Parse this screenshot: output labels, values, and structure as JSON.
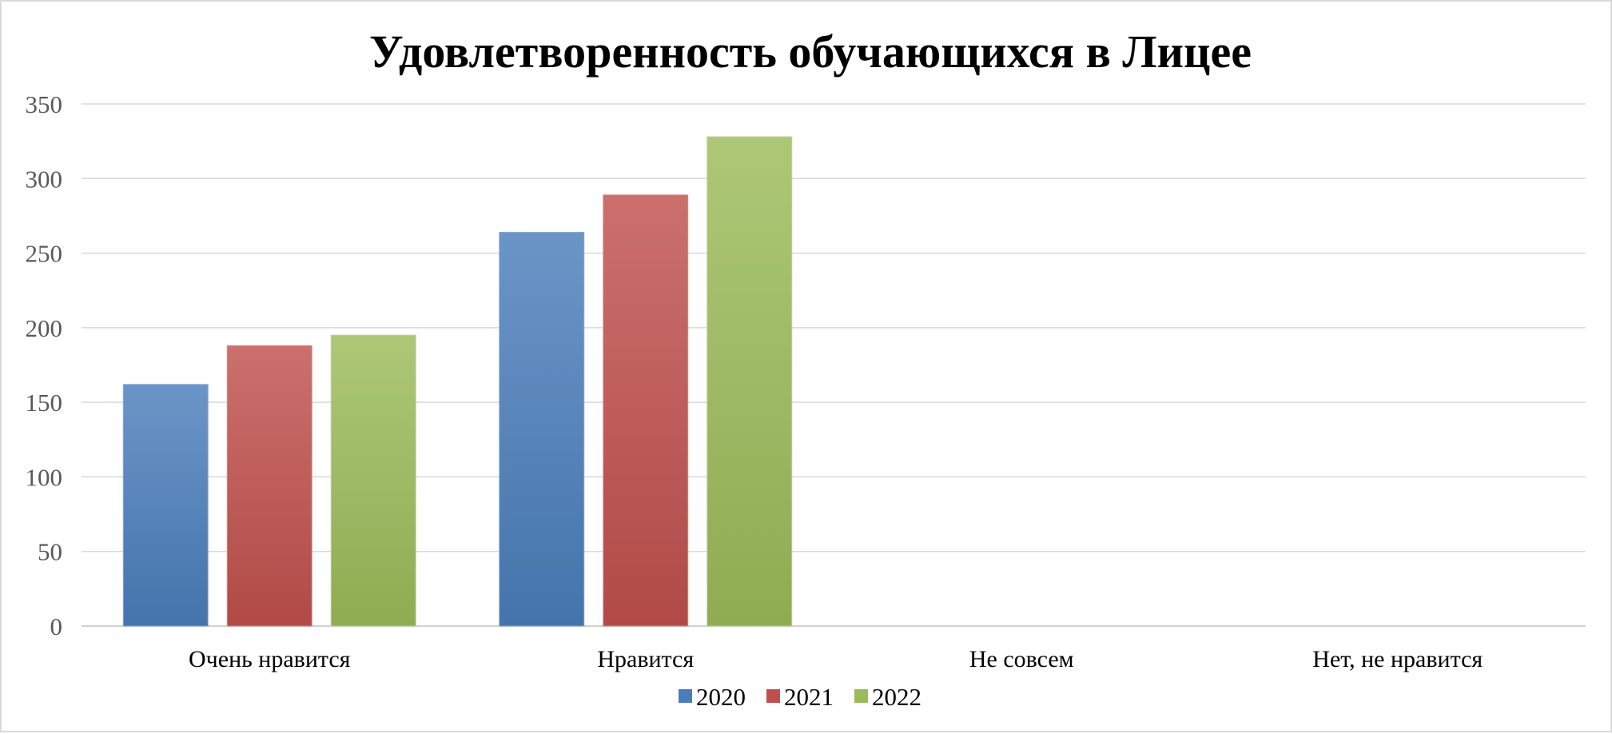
{
  "chart_data": {
    "type": "bar",
    "title": "Удовлетворенность обучающихся в Лицее",
    "categories": [
      "Очень нравится",
      "Нравится",
      "Не совсем",
      "Нет, не нравится"
    ],
    "series": [
      {
        "name": "2020",
        "values": [
          162,
          264,
          0,
          0
        ],
        "color": "#4a7ebb"
      },
      {
        "name": "2021",
        "values": [
          188,
          289,
          0,
          0
        ],
        "color": "#c0504d"
      },
      {
        "name": "2022",
        "values": [
          195,
          328,
          0,
          0
        ],
        "color": "#9bbb59"
      }
    ],
    "yticks": [
      "0",
      "50",
      "100",
      "150",
      "200",
      "250",
      "300",
      "350"
    ],
    "ylim": [
      0,
      350
    ],
    "grid": true,
    "legend": "bottom"
  }
}
